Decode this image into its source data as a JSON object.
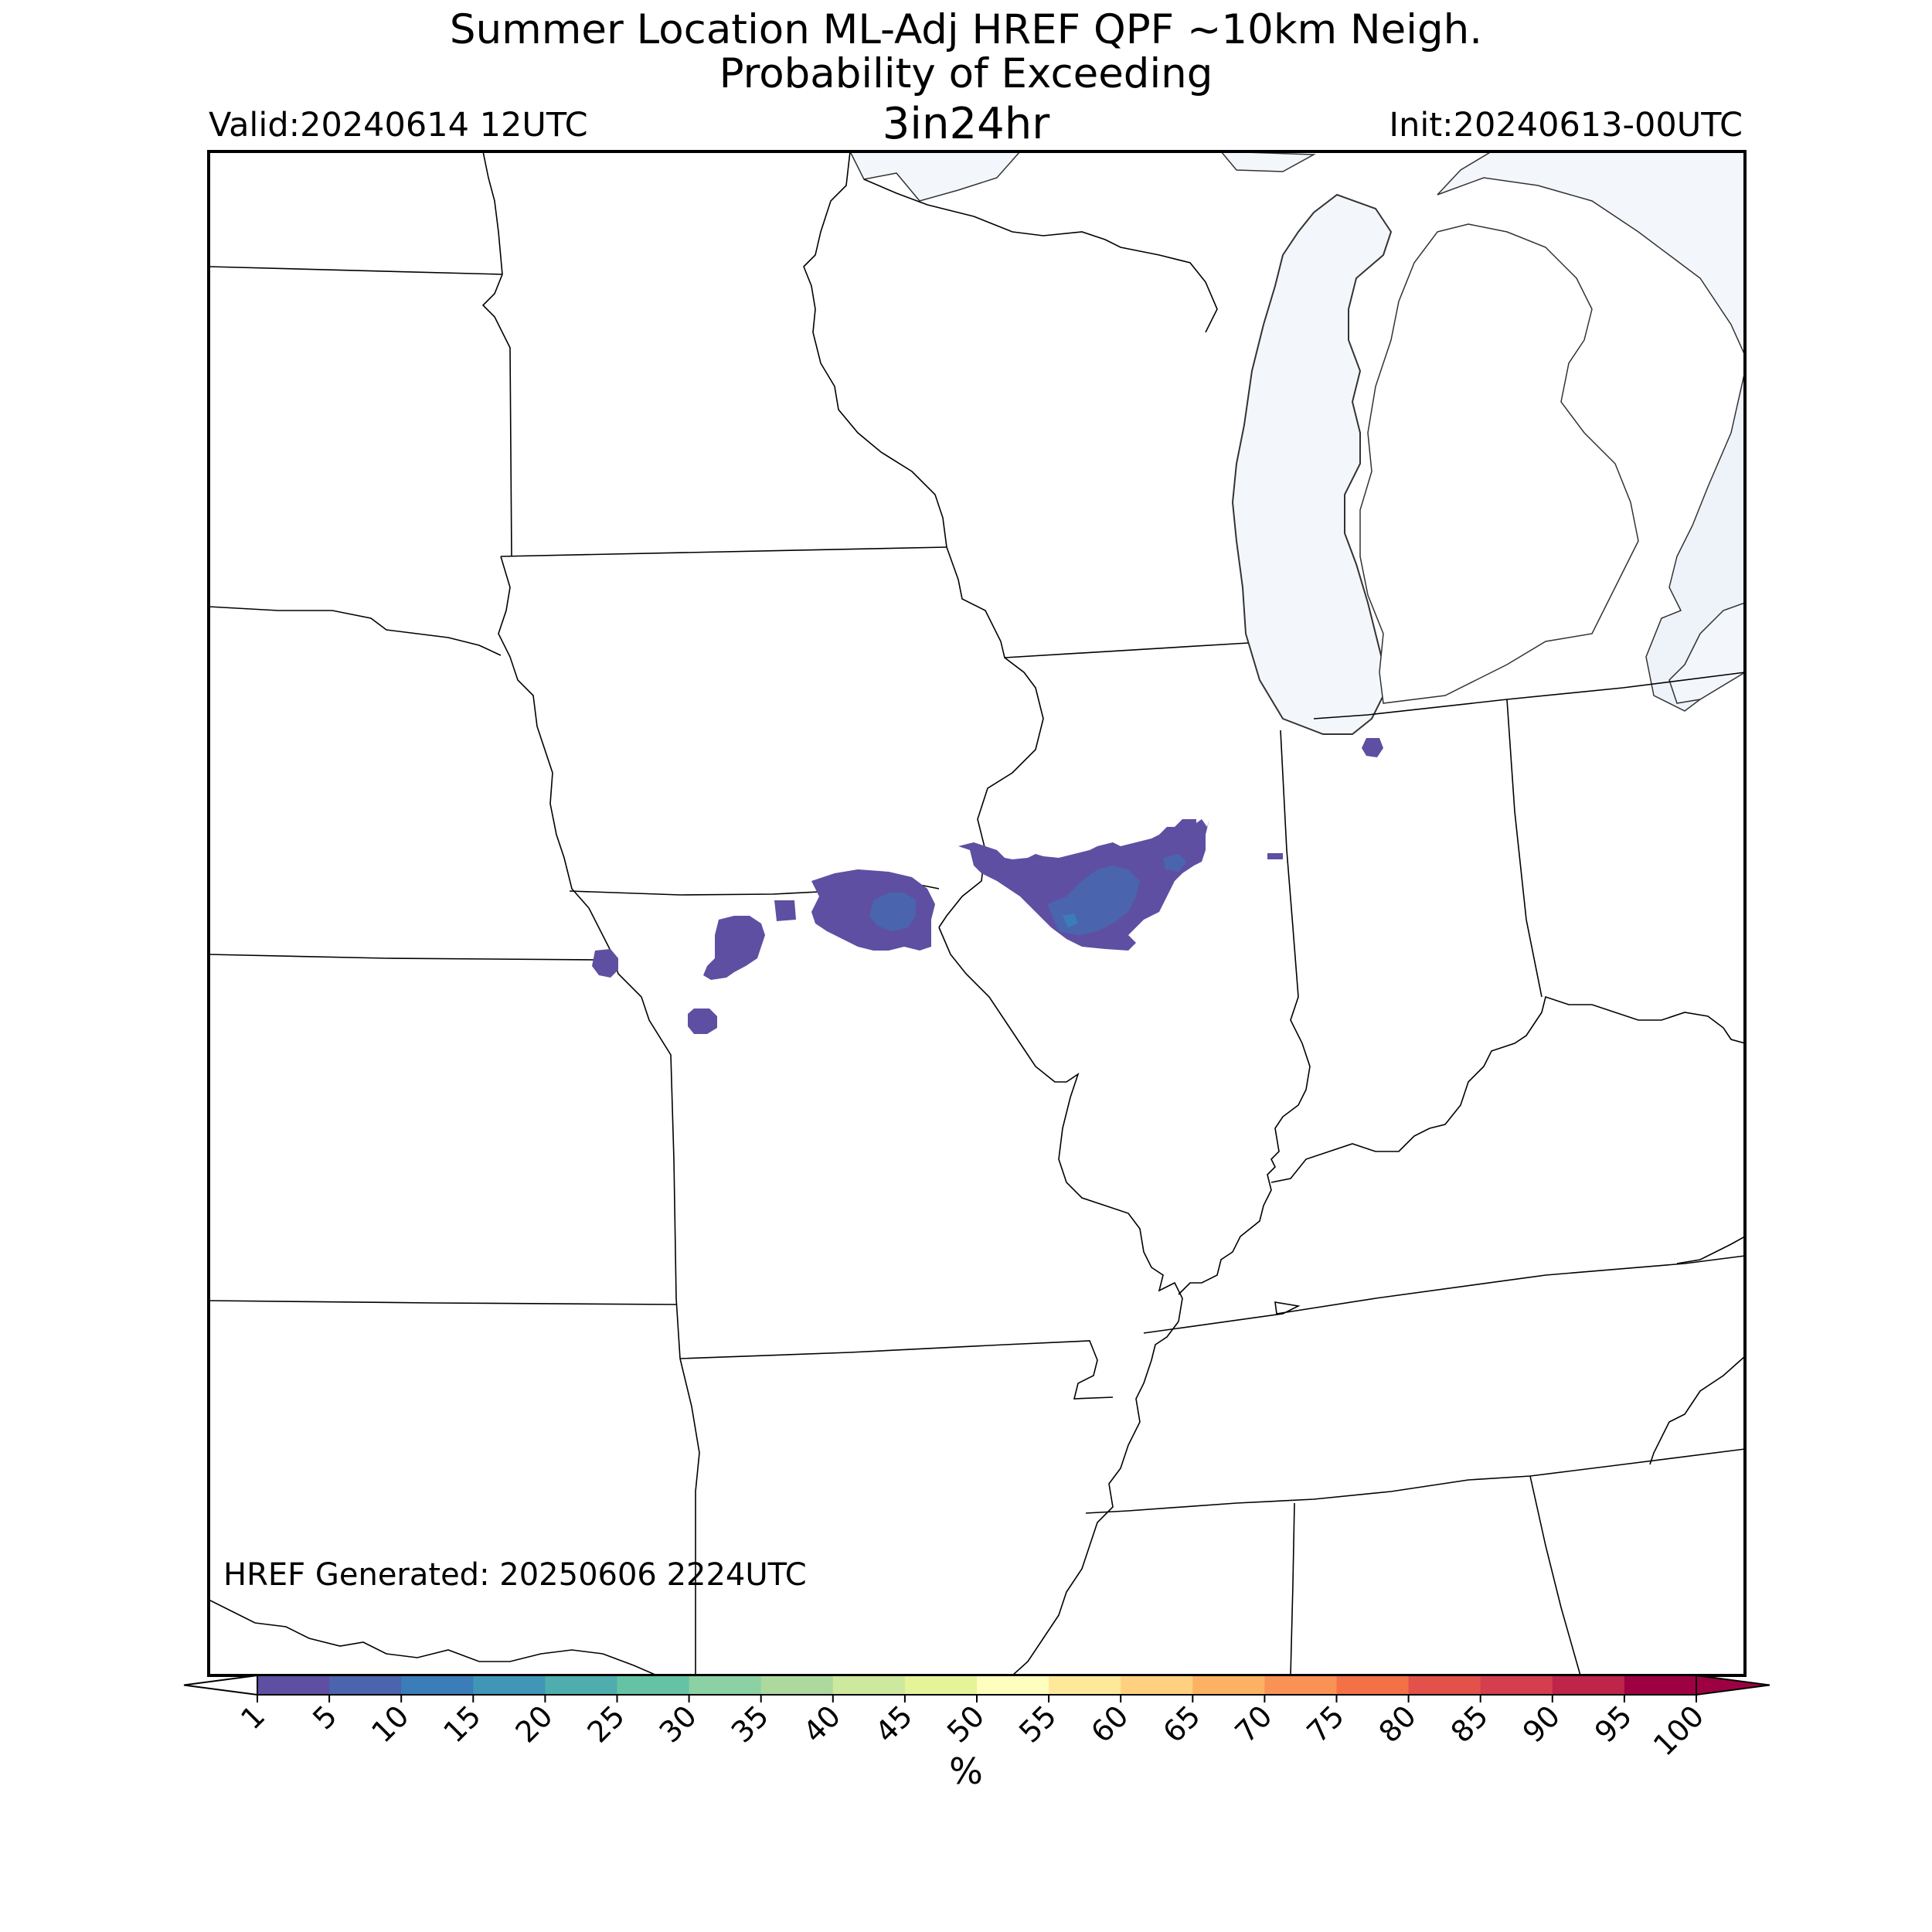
{
  "title_line1": "Summer Location ML-Adj HREF QPF ~10km Neigh.",
  "title_line2": "Probability of Exceeding",
  "threshold_label": "3in24hr",
  "valid_label": "Valid:20240614 12UTC",
  "init_label": "Init:20240613-00UTC",
  "generated_label": "HREF Generated: 20250606 2224UTC",
  "colorbar": {
    "unit_label": "%",
    "ticks": [
      "1",
      "5",
      "10",
      "15",
      "20",
      "25",
      "30",
      "35",
      "40",
      "45",
      "50",
      "55",
      "60",
      "65",
      "70",
      "75",
      "80",
      "85",
      "90",
      "95",
      "100"
    ],
    "colors": [
      "#5e4fa2",
      "#4a65ad",
      "#3a7db8",
      "#3f96b7",
      "#4fadad",
      "#66c2a5",
      "#8bd1a4",
      "#add99f",
      "#cde99d",
      "#e5f498",
      "#fefebe",
      "#fee89a",
      "#fed07f",
      "#fdb163",
      "#fa9256",
      "#f47047",
      "#e2514a",
      "#d53e4f",
      "#be2549",
      "#9e0142"
    ]
  },
  "map": {
    "land_color": "#ffffff",
    "water_color": "#f3f6fb",
    "border_color": "#000000"
  }
}
